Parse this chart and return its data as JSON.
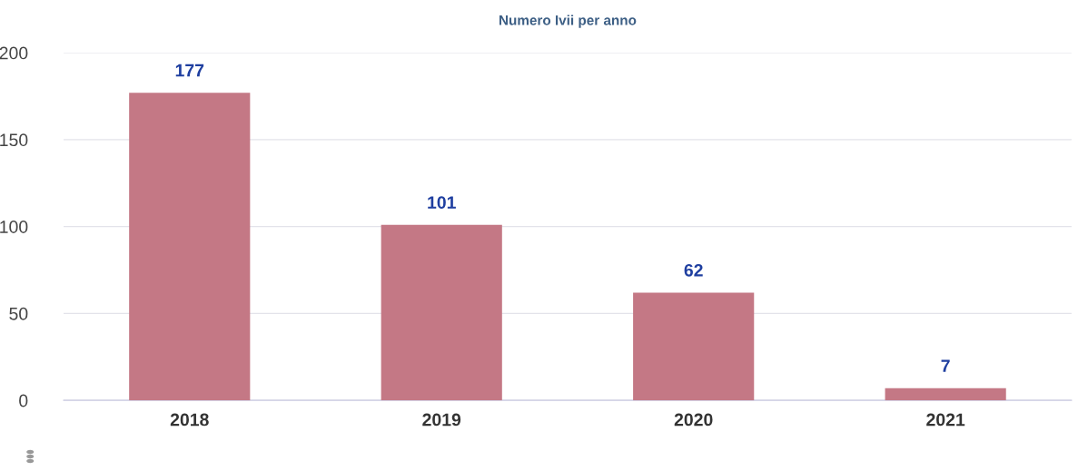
{
  "chart_data": {
    "type": "bar",
    "title": "Numero Ivii per anno",
    "categories": [
      "2018",
      "2019",
      "2020",
      "2021"
    ],
    "values": [
      177,
      101,
      62,
      7
    ],
    "color": "#c47885",
    "ylim": [
      0,
      200
    ],
    "yticks": [
      0,
      50,
      100,
      150,
      200
    ],
    "grid": "y",
    "data_labels": true
  }
}
